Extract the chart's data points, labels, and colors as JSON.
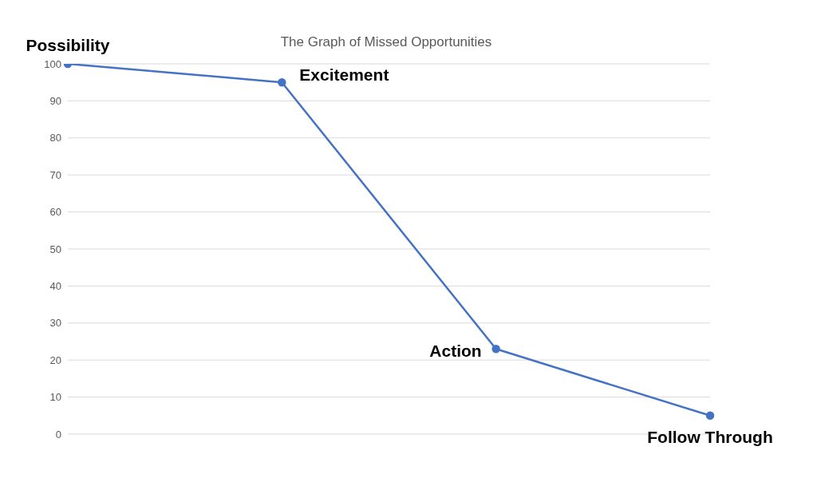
{
  "chart_data": {
    "type": "line",
    "title": "The Graph of Missed Opportunities",
    "categories": [
      null,
      null,
      null,
      null
    ],
    "series": [
      {
        "color": "#4472c4",
        "values": [
          100,
          95,
          23,
          5
        ]
      }
    ],
    "ylim": [
      0,
      100
    ],
    "yticks": [
      0,
      10,
      20,
      30,
      40,
      50,
      60,
      70,
      80,
      90,
      100
    ],
    "grid": "y",
    "marker": "circle",
    "line_style": "solid",
    "legend": false,
    "annotations": [
      "Possibility",
      "Excitement",
      "Action",
      "Follow Through"
    ]
  }
}
